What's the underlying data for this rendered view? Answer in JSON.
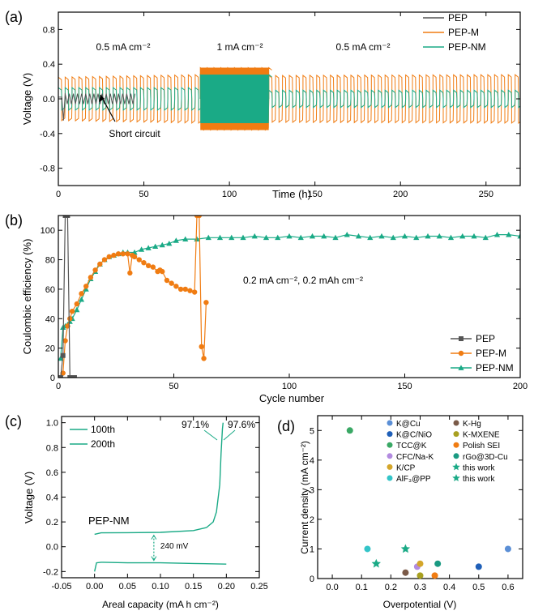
{
  "colors": {
    "pep": "#555555",
    "pep_m": "#f07c12",
    "pep_nm": "#1aaa86",
    "axis": "#000000"
  },
  "chart_data": [
    {
      "id": "a",
      "panel_label": "(a)",
      "type": "line",
      "xlabel": "Time (h)",
      "ylabel": "Voltage (V)",
      "xlim": [
        0,
        270
      ],
      "ylim": [
        -1.0,
        1.0
      ],
      "xticks": [
        0,
        50,
        100,
        150,
        200,
        250
      ],
      "yticks": [
        -0.8,
        -0.4,
        0.0,
        0.4,
        0.8
      ],
      "ytick_labels": [
        "-0.8",
        "-0.4",
        "0.0",
        "0.4",
        "0.8"
      ],
      "legend": [
        "PEP",
        "PEP-M",
        "PEP-NM"
      ],
      "legend_position": "top-right",
      "annotations": {
        "seg1": "0.5 mA cm⁻²",
        "seg2": "1 mA cm⁻²",
        "seg3": "0.5 mA cm⁻²",
        "short": "Short circuit"
      },
      "series": [
        {
          "name": "PEP",
          "segments": [
            {
              "x0": 4,
              "x1": 45,
              "amplitude": 0.06
            }
          ],
          "note_short_at": 5
        },
        {
          "name": "PEP-M",
          "segments": [
            {
              "x0": 0,
              "x1": 83,
              "amp_start": 0.25,
              "amp_end": 0.28
            },
            {
              "x0": 83,
              "x1": 123,
              "amp_start": 0.36,
              "amp_end": 0.36
            },
            {
              "x0": 123,
              "x1": 270,
              "amp_start": 0.27,
              "amp_end": 0.28
            }
          ]
        },
        {
          "name": "PEP-NM",
          "segments": [
            {
              "x0": 0,
              "x1": 83,
              "amp_start": 0.13,
              "amp_end": 0.13
            },
            {
              "x0": 83,
              "x1": 123,
              "amp_start": 0.28,
              "amp_end": 0.28
            },
            {
              "x0": 123,
              "x1": 270,
              "amp_start": 0.1,
              "amp_end": 0.1
            }
          ]
        }
      ]
    },
    {
      "id": "b",
      "panel_label": "(b)",
      "type": "scatter",
      "xlabel": "Cycle number",
      "ylabel": "Coulombic efficiency (%)",
      "xlim": [
        0,
        200
      ],
      "ylim": [
        0,
        110
      ],
      "xticks": [
        0,
        50,
        100,
        150,
        200
      ],
      "yticks": [
        0,
        20,
        40,
        60,
        80,
        100
      ],
      "legend": [
        "PEP",
        "PEP-M",
        "PEP-NM"
      ],
      "legend_position": "bottom-right",
      "annotation": "0.2 mA cm⁻², 0.2 mAh cm⁻²",
      "series": [
        {
          "name": "PEP",
          "x": [
            1,
            2,
            3,
            4,
            5,
            6,
            7
          ],
          "y": [
            0,
            15,
            110,
            110,
            0,
            0,
            0
          ]
        },
        {
          "name": "PEP-M",
          "x": [
            1,
            2,
            3,
            4,
            5,
            6,
            8,
            10,
            12,
            14,
            16,
            18,
            20,
            22,
            24,
            26,
            28,
            30,
            31,
            32,
            33,
            35,
            37,
            39,
            41,
            43,
            44,
            45,
            47,
            49,
            51,
            53,
            55,
            57,
            59,
            60,
            61,
            62,
            63,
            64
          ],
          "y": [
            0,
            3,
            25,
            35,
            40,
            45,
            50,
            57,
            62,
            68,
            73,
            77,
            80,
            82,
            83,
            84,
            84,
            84,
            71,
            83,
            82,
            80,
            78,
            76,
            75,
            72,
            73,
            72,
            66,
            64,
            62,
            60,
            60,
            59,
            58,
            110,
            110,
            21,
            13,
            51
          ]
        },
        {
          "name": "PEP-NM",
          "x": [
            1,
            2,
            3,
            4,
            5,
            6,
            8,
            10,
            12,
            14,
            16,
            18,
            20,
            22,
            24,
            26,
            28,
            30,
            33,
            36,
            39,
            42,
            45,
            48,
            51,
            55,
            60,
            65,
            70,
            75,
            80,
            85,
            90,
            95,
            100,
            105,
            110,
            115,
            120,
            125,
            130,
            135,
            140,
            145,
            150,
            155,
            160,
            165,
            170,
            175,
            180,
            185,
            190,
            195,
            200
          ],
          "y": [
            13,
            34,
            35,
            36,
            38,
            40,
            46,
            53,
            60,
            67,
            72,
            77,
            80,
            82,
            83,
            84,
            85,
            85,
            85,
            87,
            88,
            89,
            90,
            91,
            93,
            94,
            94,
            95,
            95,
            95,
            95,
            96,
            95,
            95,
            96,
            95,
            96,
            96,
            95,
            97,
            96,
            95,
            96,
            95,
            96,
            95,
            96,
            96,
            95,
            96,
            96,
            95,
            97,
            97,
            96
          ]
        }
      ]
    },
    {
      "id": "c",
      "panel_label": "(c)",
      "type": "line",
      "xlabel": "Areal capacity (mA h cm⁻²)",
      "ylabel": "Voltage (V)",
      "xlim": [
        -0.05,
        0.25
      ],
      "ylim": [
        -0.25,
        1.05
      ],
      "xticks": [
        -0.05,
        0.0,
        0.05,
        0.1,
        0.15,
        0.2,
        0.25
      ],
      "xtick_labels": [
        "-0.05",
        "0.00",
        "0.05",
        "0.10",
        "0.15",
        "0.20",
        "0.25"
      ],
      "yticks": [
        -0.2,
        0.0,
        0.2,
        0.4,
        0.6,
        0.8,
        1.0
      ],
      "ytick_labels": [
        "-0.2",
        "0.0",
        "0.2",
        "0.4",
        "0.6",
        "0.8",
        "1.0"
      ],
      "legend": [
        "100th",
        "200th"
      ],
      "legend_position": "top-left",
      "annotations": {
        "sample": "PEP-NM",
        "ce1": "97.1%",
        "ce2": "97.6%",
        "gap": "240 mV"
      },
      "series": [
        {
          "name": "charge",
          "x": [
            0.0,
            0.01,
            0.05,
            0.1,
            0.15,
            0.17,
            0.18,
            0.185,
            0.19,
            0.192,
            0.194,
            0.195
          ],
          "y": [
            0.1,
            0.112,
            0.113,
            0.116,
            0.13,
            0.155,
            0.2,
            0.28,
            0.5,
            0.75,
            0.95,
            1.0
          ]
        },
        {
          "name": "discharge",
          "x": [
            0.0,
            0.003,
            0.01,
            0.05,
            0.1,
            0.15,
            0.2
          ],
          "y": [
            -0.2,
            -0.13,
            -0.125,
            -0.13,
            -0.13,
            -0.135,
            -0.14
          ]
        }
      ]
    },
    {
      "id": "d",
      "panel_label": "(d)",
      "type": "scatter",
      "xlabel": "Overpotential (V)",
      "ylabel": "Current density (mA cm⁻²)",
      "xlim": [
        -0.05,
        0.65
      ],
      "ylim": [
        0,
        5.5
      ],
      "xticks": [
        0.0,
        0.1,
        0.2,
        0.3,
        0.4,
        0.5,
        0.6
      ],
      "xtick_labels": [
        "0.0",
        "0.1",
        "0.2",
        "0.3",
        "0.4",
        "0.5",
        "0.6"
      ],
      "yticks": [
        0,
        1,
        2,
        3,
        4,
        5
      ],
      "legend_position": "top-right",
      "series": [
        {
          "name": "K@Cu",
          "color": "#5b8fd6",
          "marker": "circle",
          "x": 0.6,
          "y": 1.0
        },
        {
          "name": "K@C/NiO",
          "color": "#1f5fb8",
          "marker": "circle",
          "x": 0.5,
          "y": 0.4
        },
        {
          "name": "TCC@K",
          "color": "#3aa865",
          "marker": "circle",
          "x": 0.06,
          "y": 5.0
        },
        {
          "name": "CFC/Na-K",
          "color": "#b38be0",
          "marker": "circle",
          "x": 0.29,
          "y": 0.4
        },
        {
          "name": "K/CP",
          "color": "#d4a62a",
          "marker": "circle",
          "x": 0.3,
          "y": 0.5
        },
        {
          "name": "AlF₃@PP",
          "color": "#33c4c8",
          "marker": "circle",
          "x": 0.12,
          "y": 1.0
        },
        {
          "name": "K-Hg",
          "color": "#7a5a48",
          "marker": "circle",
          "x": 0.25,
          "y": 0.2
        },
        {
          "name": "K-MXENE",
          "color": "#a8a020",
          "marker": "circle",
          "x": 0.3,
          "y": 0.1
        },
        {
          "name": "Polish SEI",
          "color": "#f07c12",
          "marker": "circle",
          "x": 0.35,
          "y": 0.1
        },
        {
          "name": "rGo@3D-Cu",
          "color": "#1a9a82",
          "marker": "circle",
          "x": 0.36,
          "y": 0.5
        },
        {
          "name": "this work",
          "color": "#1aaa86",
          "marker": "star",
          "x": 0.25,
          "y": 1.0
        },
        {
          "name": "this work",
          "color": "#1aaa86",
          "marker": "star",
          "x": 0.15,
          "y": 0.5
        }
      ]
    }
  ]
}
